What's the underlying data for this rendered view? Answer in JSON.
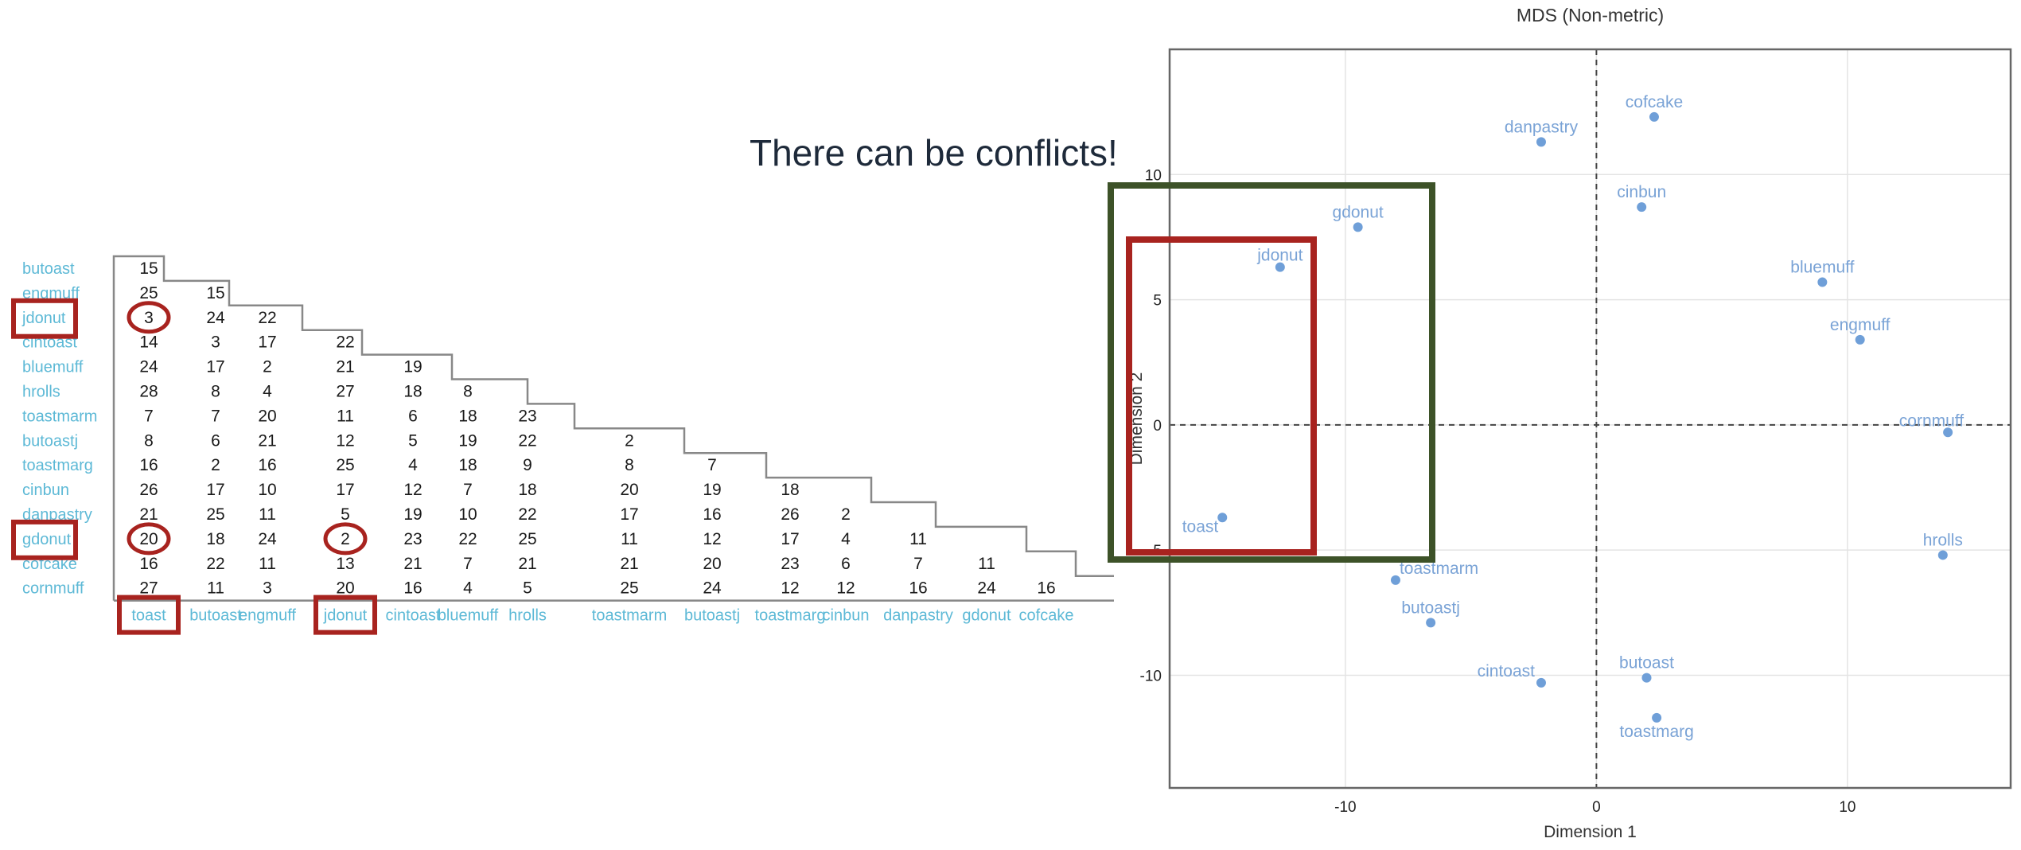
{
  "callout": "There can be conflicts!",
  "colors": {
    "label": "#5db9d6",
    "point": "#6f9fd8",
    "highlight_red": "#a8231f",
    "highlight_green": "#3d5228"
  },
  "chart_data": [
    {
      "type": "table",
      "row_labels": [
        "butoast",
        "engmuff",
        "jdonut",
        "cintoast",
        "bluemuff",
        "hrolls",
        "toastmarm",
        "butoastj",
        "toastmarg",
        "cinbun",
        "danpastry",
        "gdonut",
        "cofcake",
        "cornmuff"
      ],
      "col_labels": [
        "toast",
        "butoast",
        "engmuff",
        "jdonut",
        "cintoast",
        "bluemuff",
        "hrolls",
        "toastmarm",
        "butoastj",
        "toastmarg",
        "cinbun",
        "danpastry",
        "gdonut",
        "cofcake"
      ],
      "values": [
        [
          15
        ],
        [
          25,
          15
        ],
        [
          3,
          24,
          22
        ],
        [
          14,
          3,
          17,
          22
        ],
        [
          24,
          17,
          2,
          21,
          19
        ],
        [
          28,
          8,
          4,
          27,
          18,
          8
        ],
        [
          7,
          7,
          20,
          11,
          6,
          18,
          23
        ],
        [
          8,
          6,
          21,
          12,
          5,
          19,
          22,
          2
        ],
        [
          16,
          2,
          16,
          25,
          4,
          18,
          9,
          8,
          7
        ],
        [
          26,
          17,
          10,
          17,
          12,
          7,
          18,
          20,
          19,
          18
        ],
        [
          21,
          25,
          11,
          5,
          19,
          10,
          22,
          17,
          16,
          26,
          2
        ],
        [
          20,
          18,
          24,
          2,
          23,
          22,
          25,
          11,
          12,
          17,
          4,
          11
        ],
        [
          16,
          22,
          11,
          13,
          21,
          7,
          21,
          21,
          20,
          23,
          6,
          7,
          11
        ],
        [
          27,
          11,
          3,
          20,
          16,
          4,
          5,
          25,
          24,
          12,
          12,
          16,
          24,
          16
        ]
      ],
      "highlighted_rows": [
        "jdonut",
        "gdonut"
      ],
      "highlighted_cols": [
        "toast",
        "jdonut"
      ],
      "circled_cells": [
        [
          2,
          0
        ],
        [
          11,
          0
        ],
        [
          11,
          3
        ]
      ]
    },
    {
      "type": "scatter",
      "title": "MDS (Non-metric)",
      "xlabel": "Dimension 1",
      "ylabel": "Dimension 2",
      "xlim": [
        -17,
        16.5
      ],
      "ylim": [
        -14.5,
        15
      ],
      "xticks": [
        -10,
        0,
        10
      ],
      "yticks": [
        -10,
        -5,
        0,
        5,
        10
      ],
      "grid": true,
      "reference_lines": "dashed at x=0 and y=0",
      "points": [
        {
          "label": "cofcake",
          "x": 2.3,
          "y": 12.3
        },
        {
          "label": "danpastry",
          "x": -2.2,
          "y": 11.3
        },
        {
          "label": "cinbun",
          "x": 1.8,
          "y": 8.7
        },
        {
          "label": "gdonut",
          "x": -9.5,
          "y": 7.9
        },
        {
          "label": "jdonut",
          "x": -12.6,
          "y": 6.3
        },
        {
          "label": "bluemuff",
          "x": 9.0,
          "y": 5.7
        },
        {
          "label": "engmuff",
          "x": 10.5,
          "y": 3.4
        },
        {
          "label": "cornmuff",
          "x": 14.0,
          "y": -0.3
        },
        {
          "label": "toast",
          "x": -14.9,
          "y": -3.7
        },
        {
          "label": "hrolls",
          "x": 13.8,
          "y": -5.2
        },
        {
          "label": "toastmarm",
          "x": -8.0,
          "y": -6.2
        },
        {
          "label": "butoastj",
          "x": -6.6,
          "y": -7.9
        },
        {
          "label": "cintoast",
          "x": -2.2,
          "y": -10.3
        },
        {
          "label": "butoast",
          "x": 2.0,
          "y": -10.1
        },
        {
          "label": "toastmarg",
          "x": 2.4,
          "y": -11.7
        }
      ]
    }
  ]
}
